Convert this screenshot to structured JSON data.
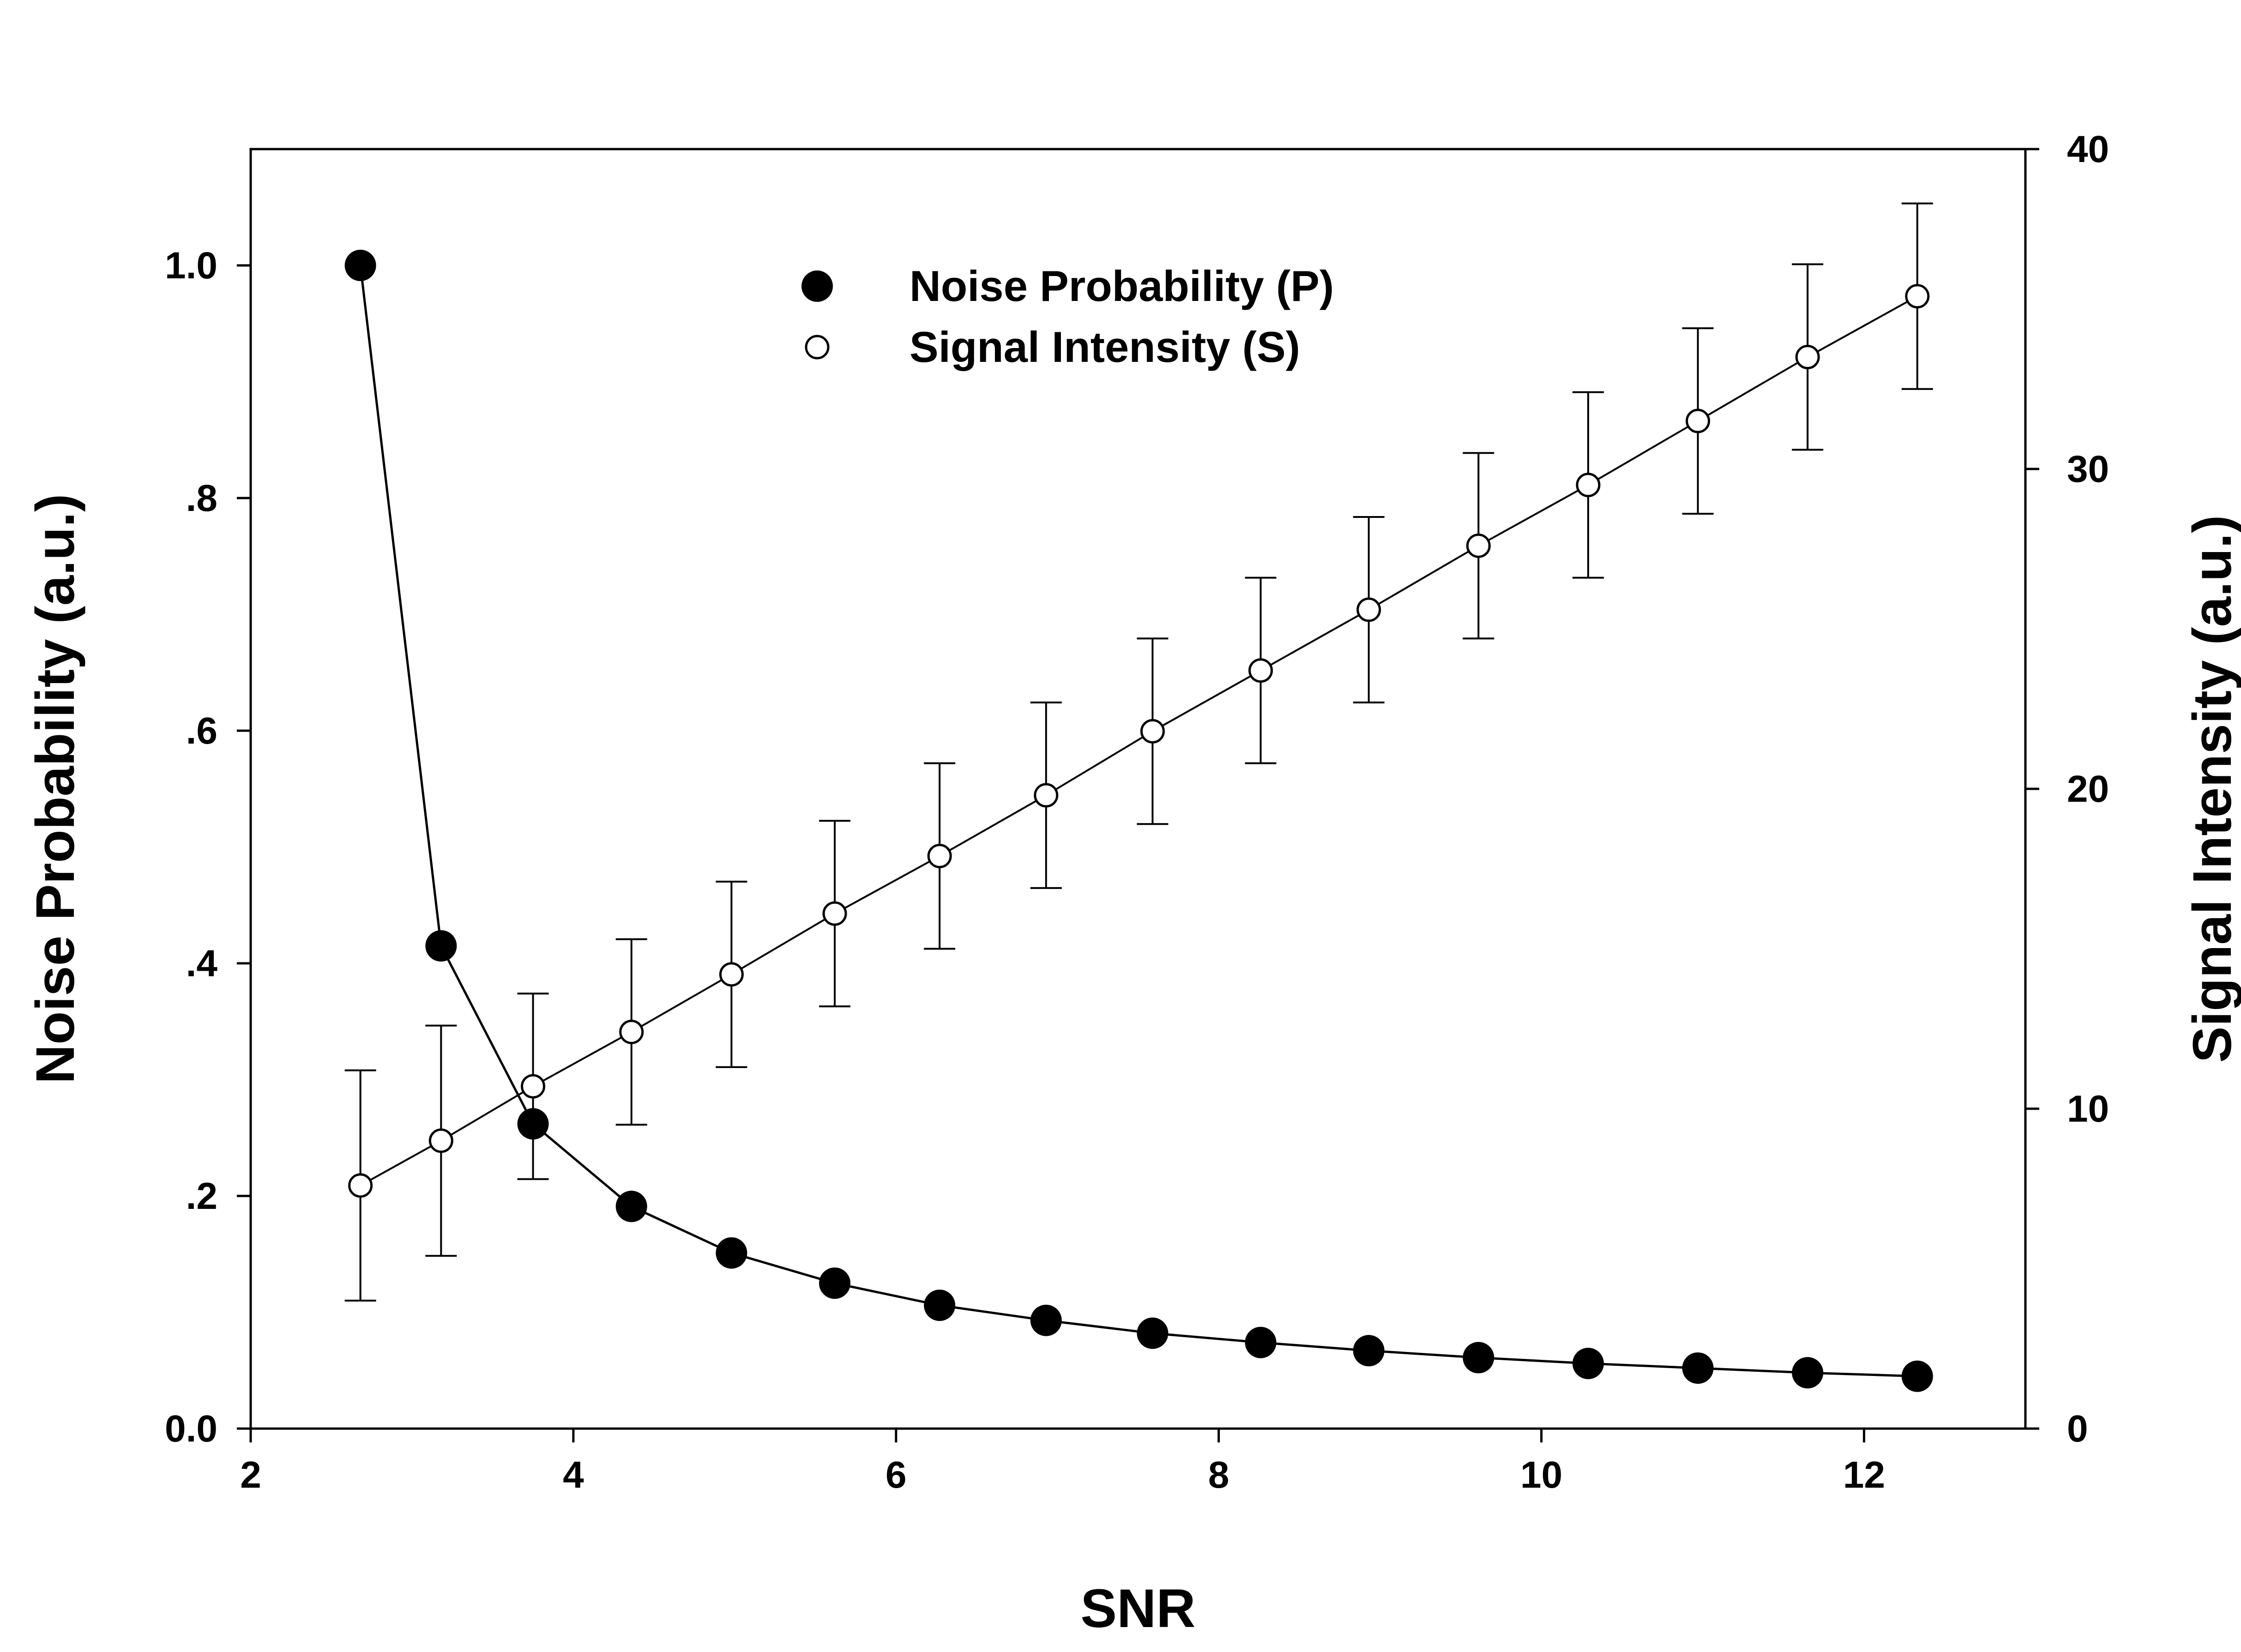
{
  "chart_data": {
    "type": "line",
    "xlabel": "SNR",
    "ylabel_left": "Noise Probability (a.u.)",
    "ylabel_right": "Signal Intensity (a.u.)",
    "xlim": [
      2,
      13
    ],
    "ylim_left": [
      0,
      1.1
    ],
    "ylim_right": [
      0,
      40
    ],
    "x_ticks": [
      2,
      4,
      6,
      8,
      10,
      12
    ],
    "x_tick_labels": [
      "2",
      "4",
      "6",
      "8",
      "10",
      "12"
    ],
    "y_left_ticks": [
      0,
      0.2,
      0.4,
      0.6,
      0.8,
      1.0
    ],
    "y_left_tick_labels": [
      "0.0",
      ".2",
      ".4",
      ".6",
      ".8",
      "1.0"
    ],
    "y_right_ticks": [
      0,
      10,
      20,
      30,
      40
    ],
    "y_right_tick_labels": [
      "0",
      "10",
      "20",
      "30",
      "40"
    ],
    "grid": false,
    "legend_position": "top-center",
    "series": [
      {
        "name": "Noise Probability (P)",
        "axis": "left",
        "marker": "filled-circle",
        "x": [
          2.68,
          3.18,
          3.75,
          4.36,
          4.98,
          5.62,
          6.27,
          6.93,
          7.59,
          8.26,
          8.93,
          9.61,
          10.29,
          10.97,
          11.65,
          12.33
        ],
        "y": [
          1.0,
          0.415,
          0.262,
          0.191,
          0.151,
          0.125,
          0.106,
          0.093,
          0.082,
          0.074,
          0.067,
          0.061,
          0.056,
          0.052,
          0.048,
          0.045
        ]
      },
      {
        "name": "Signal Intensity (S)",
        "axis": "right",
        "marker": "open-circle",
        "x": [
          2.68,
          3.18,
          3.75,
          4.36,
          4.98,
          5.62,
          6.27,
          6.93,
          7.59,
          8.26,
          8.93,
          9.61,
          10.29,
          10.97,
          11.65,
          12.33
        ],
        "y": [
          7.6,
          9.0,
          10.7,
          12.4,
          14.2,
          16.1,
          17.9,
          19.8,
          21.8,
          23.7,
          25.6,
          27.6,
          29.5,
          31.5,
          33.5,
          35.4
        ],
        "error": [
          3.6,
          3.6,
          2.9,
          2.9,
          2.9,
          2.9,
          2.9,
          2.9,
          2.9,
          2.9,
          2.9,
          2.9,
          2.9,
          2.9,
          2.9,
          2.9
        ]
      }
    ]
  }
}
